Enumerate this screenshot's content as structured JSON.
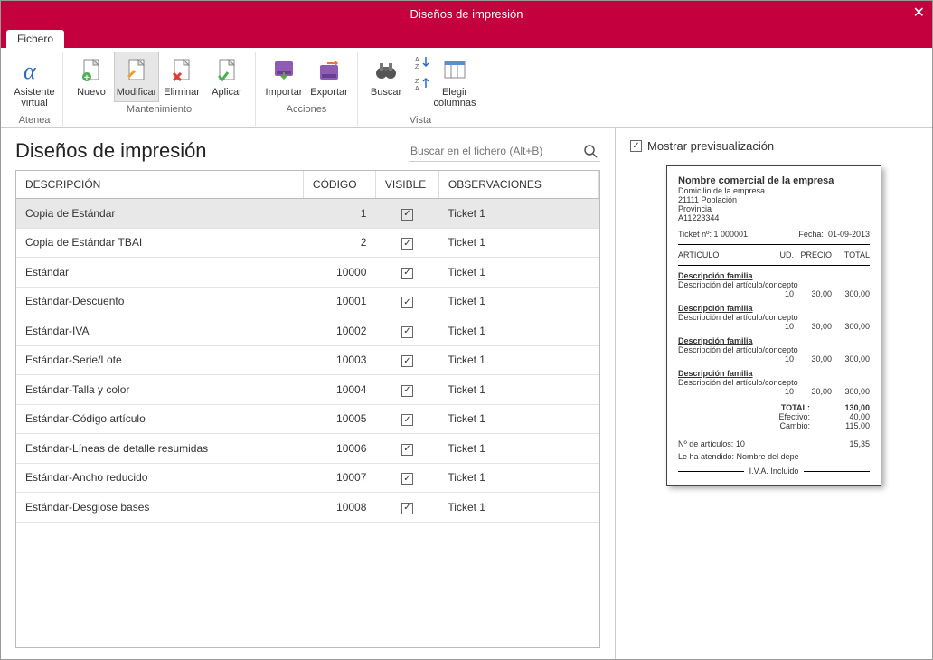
{
  "window": {
    "title": "Diseños de impresión"
  },
  "tab": {
    "label": "Fichero"
  },
  "ribbon": {
    "atenea": {
      "assistant": "Asistente\nvirtual",
      "group": "Atenea"
    },
    "maintenance": {
      "nuevo": "Nuevo",
      "modificar": "Modificar",
      "eliminar": "Eliminar",
      "aplicar": "Aplicar",
      "group": "Mantenimiento"
    },
    "actions": {
      "importar": "Importar",
      "exportar": "Exportar",
      "group": "Acciones"
    },
    "view": {
      "buscar": "Buscar",
      "elegir": "Elegir\ncolumnas",
      "group": "Vista"
    }
  },
  "list": {
    "title": "Diseños de impresión",
    "search_placeholder": "Buscar en el fichero (Alt+B)",
    "columns": {
      "descripcion": "DESCRIPCIÓN",
      "codigo": "CÓDIGO",
      "visible": "VISIBLE",
      "observaciones": "OBSERVACIONES"
    },
    "rows": [
      {
        "descripcion": "Copia de Estándar",
        "codigo": "1",
        "visible": true,
        "observaciones": "Ticket 1",
        "selected": true
      },
      {
        "descripcion": "Copia de Estándar TBAI",
        "codigo": "2",
        "visible": true,
        "observaciones": "Ticket 1"
      },
      {
        "descripcion": "Estándar",
        "codigo": "10000",
        "visible": true,
        "observaciones": "Ticket 1"
      },
      {
        "descripcion": "Estándar-Descuento",
        "codigo": "10001",
        "visible": true,
        "observaciones": "Ticket 1"
      },
      {
        "descripcion": "Estándar-IVA",
        "codigo": "10002",
        "visible": true,
        "observaciones": "Ticket 1"
      },
      {
        "descripcion": "Estándar-Serie/Lote",
        "codigo": "10003",
        "visible": true,
        "observaciones": "Ticket 1"
      },
      {
        "descripcion": "Estándar-Talla y color",
        "codigo": "10004",
        "visible": true,
        "observaciones": "Ticket 1"
      },
      {
        "descripcion": "Estándar-Código artículo",
        "codigo": "10005",
        "visible": true,
        "observaciones": "Ticket 1"
      },
      {
        "descripcion": "Estándar-Líneas de detalle resumidas",
        "codigo": "10006",
        "visible": true,
        "observaciones": "Ticket 1"
      },
      {
        "descripcion": "Estándar-Ancho reducido",
        "codigo": "10007",
        "visible": true,
        "observaciones": "Ticket 1"
      },
      {
        "descripcion": "Estándar-Desglose bases",
        "codigo": "10008",
        "visible": true,
        "observaciones": "Ticket 1"
      }
    ]
  },
  "preview": {
    "toggle_label": "Mostrar previsualización",
    "toggle_checked": true,
    "company": "Nombre comercial de la empresa",
    "address1": "Domicilio de la empresa",
    "address2": "21111    Población",
    "address3": "Provincia",
    "cif": "A11223344",
    "ticket_label": "Ticket nº:  1   000001",
    "date_label": "Fecha:",
    "date_value": "01-09-2013",
    "col_articulo": "ARTICULO",
    "col_ud": "UD.",
    "col_precio": "PRECIO",
    "col_total": "TOTAL",
    "family_label": "Descripción familia",
    "item_desc": "Descripción del artículo/concepto",
    "item_ud": "10",
    "item_precio": "30,00",
    "item_total": "300,00",
    "line_count": 4,
    "total_label": "TOTAL:",
    "total_value": "130,00",
    "efectivo_label": "Efectivo:",
    "efectivo_value": "40,00",
    "cambio_label": "Cambio:",
    "cambio_value": "115,00",
    "narticulos_label": "Nº de artículos:   10",
    "narticulos_value": "15,35",
    "attended_label": "Le ha atendido:    Nombre del depe",
    "iva_label": "I.V.A. Incluido"
  },
  "colors": {
    "brand": "#c5003e"
  }
}
